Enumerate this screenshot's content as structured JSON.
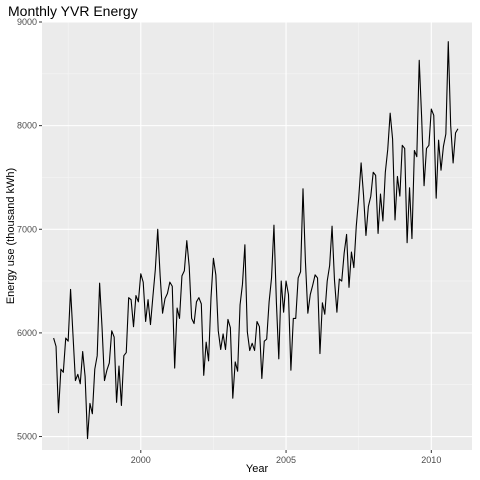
{
  "chart_data": {
    "type": "line",
    "title": "Monthly YVR Energy",
    "xlabel": "Year",
    "ylabel": "Energy use (thousand kWh)",
    "xlim": [
      1996.6,
      2011.4
    ],
    "ylim": [
      4870,
      9000
    ],
    "x_ticks": [
      2000,
      2005,
      2010
    ],
    "x_tick_labels": [
      "2000",
      "2005",
      "2010"
    ],
    "y_ticks": [
      5000,
      6000,
      7000,
      8000,
      9000
    ],
    "y_tick_labels": [
      "5000",
      "6000",
      "7000",
      "8000",
      "9000"
    ],
    "grid": true,
    "colors": {
      "panel": "#ebebeb",
      "grid_major": "#ffffff",
      "grid_minor": "#f5f5f5",
      "line": "#000000"
    },
    "series": [
      {
        "x_start": 1997.0,
        "x_step_months": 1,
        "values": [
          5950,
          5870,
          5230,
          5650,
          5620,
          5950,
          5920,
          6420,
          5980,
          5540,
          5600,
          5510,
          5820,
          5580,
          4980,
          5320,
          5220,
          5650,
          5780,
          6480,
          6050,
          5540,
          5640,
          5710,
          6020,
          5960,
          5330,
          5680,
          5300,
          5780,
          5810,
          6340,
          6320,
          6060,
          6360,
          6300,
          6570,
          6490,
          6110,
          6320,
          6080,
          6350,
          6610,
          7000,
          6550,
          6190,
          6330,
          6380,
          6490,
          6450,
          5660,
          6240,
          6140,
          6550,
          6600,
          6890,
          6640,
          6140,
          6090,
          6300,
          6340,
          6280,
          5590,
          5910,
          5730,
          6340,
          6720,
          6560,
          6020,
          5840,
          5990,
          5840,
          6130,
          6050,
          5370,
          5720,
          5630,
          6270,
          6470,
          6850,
          6010,
          5830,
          5900,
          5830,
          6110,
          6060,
          5560,
          5920,
          5940,
          6300,
          6530,
          7040,
          6300,
          5750,
          6500,
          6200,
          6500,
          6370,
          5640,
          6140,
          6140,
          6530,
          6590,
          7390,
          6690,
          6190,
          6370,
          6460,
          6560,
          6530,
          5800,
          6290,
          6180,
          6500,
          6650,
          7030,
          6510,
          6200,
          6520,
          6500,
          6770,
          6950,
          6440,
          6780,
          6630,
          7030,
          7300,
          7640,
          7330,
          6940,
          7220,
          7320,
          7550,
          7520,
          6960,
          7340,
          7080,
          7550,
          7770,
          8120,
          7870,
          7090,
          7510,
          7320,
          7810,
          7780,
          6870,
          7400,
          6910,
          7760,
          7700,
          8630,
          8080,
          7420,
          7780,
          7810,
          8160,
          8100,
          7300,
          7860,
          7570,
          7800,
          7920,
          8810,
          8000,
          7640,
          7930,
          7970
        ]
      }
    ]
  }
}
